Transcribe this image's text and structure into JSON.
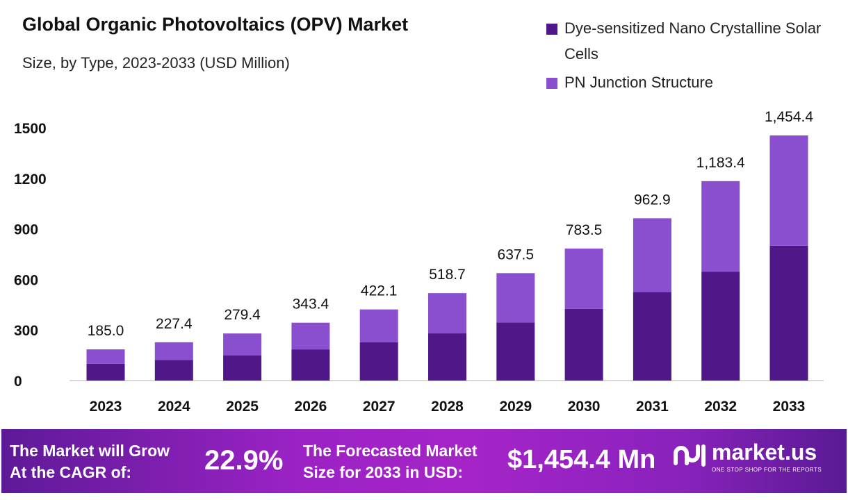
{
  "chart_data": {
    "type": "bar",
    "stacked": true,
    "title": "Global Organic Photovoltaics (OPV) Market",
    "subtitle": "Size, by Type, 2023-2033 (USD Million)",
    "categories": [
      "2023",
      "2024",
      "2025",
      "2026",
      "2027",
      "2028",
      "2029",
      "2030",
      "2031",
      "2032",
      "2033"
    ],
    "series": [
      {
        "name": "Dye-sensitized Nano Crystalline Solar Cells",
        "color": "#4f1787",
        "values": [
          100,
          122,
          150,
          185,
          227,
          280,
          345,
          425,
          525,
          645,
          800
        ]
      },
      {
        "name": "PN Junction Structure",
        "color": "#8a4fcf",
        "values": [
          85,
          105.4,
          129.4,
          158.4,
          195.1,
          238.7,
          292.5,
          358.5,
          437.9,
          538.4,
          654.4
        ]
      }
    ],
    "totals_labels": [
      "185.0",
      "227.4",
      "279.4",
      "343.4",
      "422.1",
      "518.7",
      "637.5",
      "783.5",
      "962.9",
      "1,183.4",
      "1,454.4"
    ],
    "totals": [
      185.0,
      227.4,
      279.4,
      343.4,
      422.1,
      518.7,
      637.5,
      783.5,
      962.9,
      1183.4,
      1454.4
    ],
    "yticks": [
      0,
      300,
      600,
      900,
      1200,
      1500
    ],
    "ylim": [
      0,
      1500
    ],
    "xlabel": "",
    "ylabel": "",
    "grid": false,
    "legend_position": "top-right"
  },
  "footer": {
    "cagr_text_line1": "The Market will Grow",
    "cagr_text_line2": "At the CAGR of:",
    "cagr_value": "22.9%",
    "forecast_text_line1": "The Forecasted Market",
    "forecast_text_line2": "Size for 2033 in USD:",
    "forecast_value": "$1,454.4 Mn",
    "brand": "market.us",
    "brand_tagline": "ONE STOP SHOP FOR THE REPORTS"
  }
}
